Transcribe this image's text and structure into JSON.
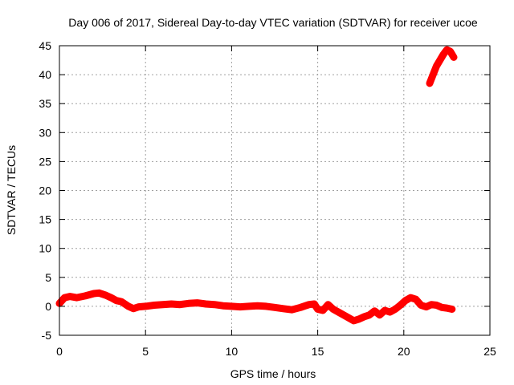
{
  "chart_data": {
    "type": "line",
    "title": "Day 006 of 2017, Sidereal Day-to-day VTEC variation (SDTVAR) for receiver ucoe",
    "xlabel": "GPS time / hours",
    "ylabel": "SDTVAR / TECUs",
    "xlim": [
      0,
      25
    ],
    "ylim": [
      -5,
      45
    ],
    "xticks": [
      0,
      5,
      10,
      15,
      20,
      25
    ],
    "yticks": [
      -5,
      0,
      5,
      10,
      15,
      20,
      25,
      30,
      35,
      40,
      45
    ],
    "grid": true,
    "legend": "none",
    "series": [
      {
        "color": "#ff0000",
        "x": [
          0.0,
          0.3,
          0.6,
          1.0,
          1.5,
          2.0,
          2.3,
          2.7,
          3.0,
          3.3,
          3.6,
          4.0,
          4.3,
          4.6,
          5.0,
          5.5,
          6.0,
          6.5,
          7.0,
          7.5,
          8.0,
          8.5,
          9.0,
          9.5,
          10.0,
          10.5,
          11.0,
          11.5,
          12.0,
          12.5,
          13.0,
          13.5,
          14.0,
          14.5,
          14.8,
          15.0,
          15.3,
          15.6,
          15.9,
          16.2,
          16.5,
          16.8,
          17.1,
          17.4,
          17.7,
          18.0,
          18.3,
          18.6,
          18.9,
          19.2,
          19.5,
          19.8,
          20.1,
          20.4,
          20.7,
          21.0,
          21.3,
          21.6,
          21.9,
          22.2,
          22.5,
          22.8
        ],
        "y": [
          0.5,
          1.5,
          1.7,
          1.5,
          1.8,
          2.2,
          2.3,
          1.9,
          1.5,
          1.0,
          0.8,
          0.0,
          -0.4,
          -0.1,
          0.0,
          0.2,
          0.3,
          0.4,
          0.3,
          0.5,
          0.6,
          0.4,
          0.3,
          0.1,
          0.0,
          -0.1,
          0.0,
          0.1,
          0.0,
          -0.2,
          -0.4,
          -0.6,
          -0.2,
          0.3,
          0.4,
          -0.5,
          -0.7,
          0.3,
          -0.5,
          -1.0,
          -1.5,
          -2.0,
          -2.5,
          -2.2,
          -1.8,
          -1.5,
          -0.8,
          -1.5,
          -0.7,
          -1.0,
          -0.5,
          0.2,
          1.0,
          1.5,
          1.2,
          0.2,
          -0.1,
          0.3,
          0.2,
          -0.2,
          -0.3,
          -0.5
        ]
      },
      {
        "color": "#ff0000",
        "x": [
          21.5,
          21.7,
          21.9,
          22.1,
          22.3,
          22.5,
          22.7,
          22.9
        ],
        "y": [
          38.5,
          40.0,
          41.5,
          42.5,
          43.5,
          44.3,
          44.0,
          43.0
        ]
      }
    ]
  }
}
